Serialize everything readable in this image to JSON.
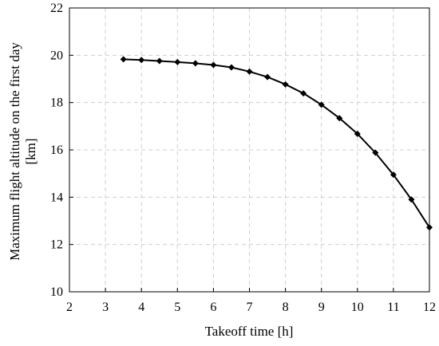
{
  "chart_data": {
    "type": "line",
    "title": "",
    "xlabel": "Takeoff time [h]",
    "ylabel_lines": [
      "Maximum flight altitude on the first day",
      "[km]"
    ],
    "xlim": [
      2,
      12
    ],
    "ylim": [
      10,
      22
    ],
    "x_ticks": [
      "2",
      "3",
      "4",
      "5",
      "6",
      "7",
      "8",
      "9",
      "10",
      "11",
      "12"
    ],
    "y_ticks": [
      "10",
      "12",
      "14",
      "16",
      "18",
      "20",
      "22"
    ],
    "grid": true,
    "legend": "none",
    "line_color": "#000000",
    "marker": "diamond",
    "series": [
      {
        "x": [
          3.5,
          4.0,
          4.5,
          5.0,
          5.5,
          6.0,
          6.5,
          7.0,
          7.5,
          8.0,
          8.5,
          9.0,
          9.5,
          10.0,
          10.5,
          11.0,
          11.5,
          12.0
        ],
        "values": [
          19.83,
          19.8,
          19.76,
          19.71,
          19.66,
          19.59,
          19.49,
          19.31,
          19.08,
          18.77,
          18.39,
          17.91,
          17.34,
          16.68,
          15.88,
          14.95,
          13.9,
          12.72
        ]
      }
    ]
  }
}
